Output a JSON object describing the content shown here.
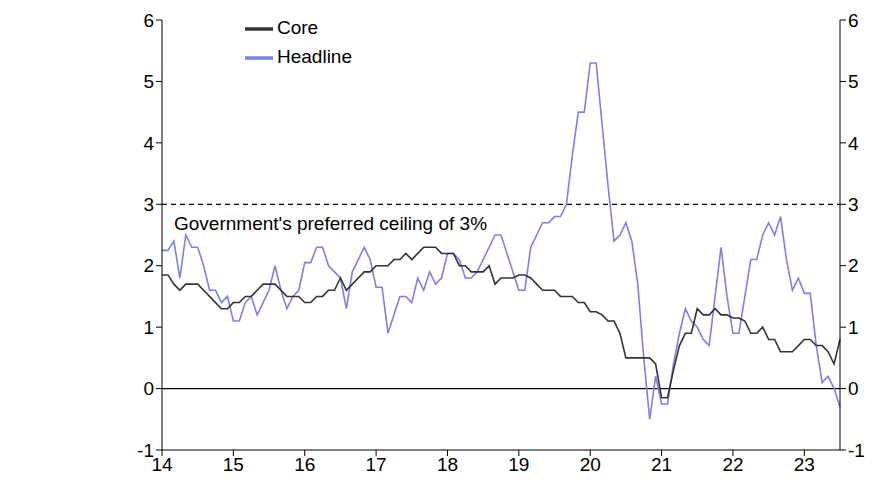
{
  "chart_data": {
    "type": "line",
    "categories": [
      "14",
      null,
      null,
      null,
      null,
      null,
      null,
      null,
      null,
      null,
      null,
      null,
      "15",
      null,
      null,
      null,
      null,
      null,
      null,
      null,
      null,
      null,
      null,
      null,
      "16",
      null,
      null,
      null,
      null,
      null,
      null,
      null,
      null,
      null,
      null,
      null,
      "17",
      null,
      null,
      null,
      null,
      null,
      null,
      null,
      null,
      null,
      null,
      null,
      "18",
      null,
      null,
      null,
      null,
      null,
      null,
      null,
      null,
      null,
      null,
      null,
      "19",
      null,
      null,
      null,
      null,
      null,
      null,
      null,
      null,
      null,
      null,
      null,
      "20",
      null,
      null,
      null,
      null,
      null,
      null,
      null,
      null,
      null,
      null,
      null,
      "21",
      null,
      null,
      null,
      null,
      null,
      null,
      null,
      null,
      null,
      null,
      null,
      "22",
      null,
      null,
      null,
      null,
      null,
      null,
      null,
      null,
      null,
      null,
      null,
      "23",
      null,
      null,
      null,
      null,
      null,
      null
    ],
    "series": [
      {
        "name": "Headline",
        "color": "#7f7fe6",
        "line_style": "solid",
        "values": [
          2.25,
          2.25,
          2.4,
          1.8,
          2.5,
          2.3,
          2.3,
          2.0,
          1.6,
          1.6,
          1.4,
          1.5,
          1.1,
          1.1,
          1.4,
          1.5,
          1.2,
          1.4,
          1.6,
          2.0,
          1.6,
          1.3,
          1.5,
          1.6,
          2.05,
          2.05,
          2.3,
          2.3,
          2.0,
          1.9,
          1.8,
          1.3,
          1.9,
          2.1,
          2.3,
          2.1,
          1.65,
          1.65,
          0.9,
          1.2,
          1.5,
          1.5,
          1.4,
          1.8,
          1.6,
          1.9,
          1.7,
          1.8,
          2.2,
          2.2,
          2.1,
          1.8,
          1.8,
          1.9,
          2.1,
          2.3,
          2.5,
          2.5,
          2.2,
          1.9,
          1.6,
          1.6,
          2.3,
          2.5,
          2.7,
          2.7,
          2.8,
          2.8,
          3.0,
          3.8,
          4.5,
          4.5,
          5.3,
          5.3,
          4.3,
          3.3,
          2.4,
          2.5,
          2.7,
          2.4,
          1.7,
          0.5,
          -0.5,
          0.2,
          -0.25,
          -0.25,
          0.4,
          0.9,
          1.3,
          1.1,
          1.0,
          0.8,
          0.7,
          1.5,
          2.3,
          1.5,
          0.9,
          0.9,
          1.5,
          2.1,
          2.1,
          2.5,
          2.7,
          2.5,
          2.8,
          2.1,
          1.6,
          1.8,
          1.55,
          1.55,
          0.7,
          0.1,
          0.2,
          0.0,
          -0.3
        ]
      },
      {
        "name": "Core",
        "color": "#333333",
        "line_style": "solid",
        "values": [
          1.85,
          1.85,
          1.7,
          1.6,
          1.7,
          1.7,
          1.7,
          1.6,
          1.5,
          1.4,
          1.3,
          1.3,
          1.4,
          1.4,
          1.5,
          1.5,
          1.6,
          1.7,
          1.7,
          1.7,
          1.6,
          1.5,
          1.5,
          1.5,
          1.4,
          1.4,
          1.5,
          1.5,
          1.6,
          1.6,
          1.8,
          1.6,
          1.7,
          1.8,
          1.9,
          1.9,
          2.0,
          2.0,
          2.0,
          2.1,
          2.1,
          2.2,
          2.1,
          2.2,
          2.3,
          2.3,
          2.3,
          2.2,
          2.2,
          2.2,
          2.0,
          2.0,
          1.9,
          1.9,
          1.9,
          2.0,
          1.7,
          1.8,
          1.8,
          1.8,
          1.85,
          1.85,
          1.8,
          1.7,
          1.6,
          1.6,
          1.6,
          1.5,
          1.5,
          1.5,
          1.4,
          1.4,
          1.25,
          1.25,
          1.2,
          1.1,
          1.1,
          0.9,
          0.5,
          0.5,
          0.5,
          0.5,
          0.5,
          0.4,
          -0.15,
          -0.15,
          0.3,
          0.7,
          0.9,
          0.9,
          1.3,
          1.2,
          1.2,
          1.3,
          1.2,
          1.2,
          1.15,
          1.15,
          1.1,
          0.9,
          0.9,
          1.0,
          0.8,
          0.8,
          0.6,
          0.6,
          0.6,
          0.7,
          0.8,
          0.8,
          0.7,
          0.7,
          0.6,
          0.4,
          0.8
        ]
      }
    ],
    "ylim": [
      -1,
      6
    ],
    "yticks": [
      -1,
      0,
      1,
      2,
      3,
      4,
      5,
      6
    ],
    "y2lim": [
      -1,
      6
    ],
    "y2ticks": [
      -1,
      0,
      1,
      2,
      3,
      4,
      5,
      6
    ],
    "annotations": [
      {
        "text": "Government's preferred ceiling of 3%",
        "y": 3,
        "line_style": "dashed"
      },
      {
        "y": 0,
        "line_style": "solid"
      }
    ],
    "grid": false,
    "legend": "top"
  }
}
